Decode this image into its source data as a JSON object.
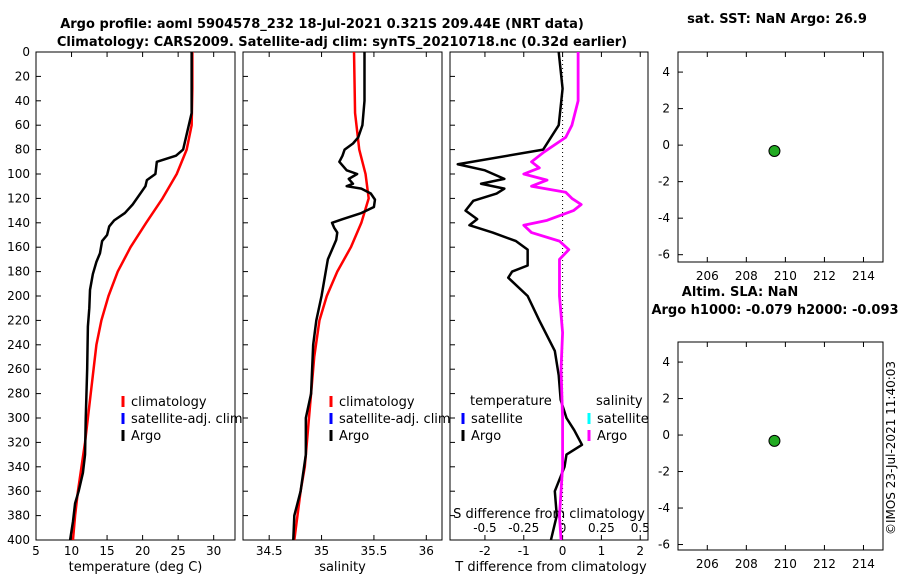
{
  "title_line1": "Argo profile: aoml 5904578_232 18-Jul-2021 0.321S 209.44E (NRT data)",
  "title_line2": "Climatology: CARS2009. Satellite-adj clim: synTS_20210718.nc (0.32d earlier)",
  "sst_title": "sat. SST: NaN Argo: 26.9",
  "sla_title1": "Altim. SLA: NaN",
  "sla_title2": "Argo h1000: -0.079 h2000: -0.093",
  "footer": "©IMOS 23-Jul-2021 11:40:03",
  "colors": {
    "climatology": "#ff0000",
    "satellite": "#0000ff",
    "argo": "#000000",
    "sal_argo": "#ff00ff",
    "sal_sat": "#00ffff",
    "marker": "#22aa22"
  },
  "chart_data": [
    {
      "id": "temp",
      "type": "line",
      "xlabel": "temperature (deg C)",
      "xlim": [
        5,
        33
      ],
      "xticks": [
        5,
        10,
        15,
        20,
        25,
        30
      ],
      "ylim": [
        0,
        400
      ],
      "yticks": [
        0,
        20,
        40,
        60,
        80,
        100,
        120,
        140,
        160,
        180,
        200,
        220,
        240,
        260,
        280,
        300,
        320,
        340,
        360,
        380,
        400
      ],
      "legend": [
        "climatology",
        "satellite-adj. clim",
        "Argo"
      ],
      "series": [
        {
          "name": "climatology",
          "color": "#ff0000",
          "points": [
            [
              27,
              0
            ],
            [
              27,
              30
            ],
            [
              26.9,
              60
            ],
            [
              26.2,
              80
            ],
            [
              24.8,
              100
            ],
            [
              22.8,
              120
            ],
            [
              20.5,
              140
            ],
            [
              18.3,
              160
            ],
            [
              16.5,
              180
            ],
            [
              15.2,
              200
            ],
            [
              14.2,
              220
            ],
            [
              13.5,
              240
            ],
            [
              13.1,
              260
            ],
            [
              12.7,
              280
            ],
            [
              12.3,
              300
            ],
            [
              11.9,
              320
            ],
            [
              11.4,
              340
            ],
            [
              10.9,
              360
            ],
            [
              10.5,
              380
            ],
            [
              10.2,
              400
            ]
          ]
        },
        {
          "name": "Argo",
          "color": "#000000",
          "points": [
            [
              26.9,
              0
            ],
            [
              26.9,
              50
            ],
            [
              26.3,
              65
            ],
            [
              25.7,
              80
            ],
            [
              24.7,
              85
            ],
            [
              22,
              90
            ],
            [
              21.8,
              100
            ],
            [
              20.6,
              105
            ],
            [
              20.4,
              110
            ],
            [
              19.8,
              115
            ],
            [
              18.6,
              125
            ],
            [
              17.5,
              132
            ],
            [
              16,
              138
            ],
            [
              15.3,
              143
            ],
            [
              15,
              150
            ],
            [
              14.3,
              155
            ],
            [
              14,
              165
            ],
            [
              13.5,
              172
            ],
            [
              13,
              182
            ],
            [
              12.6,
              195
            ],
            [
              12.5,
              210
            ],
            [
              12.3,
              225
            ],
            [
              12.2,
              260
            ],
            [
              12.1,
              280
            ],
            [
              12,
              300
            ],
            [
              11.9,
              330
            ],
            [
              11.6,
              345
            ],
            [
              11,
              360
            ],
            [
              10.5,
              370
            ],
            [
              10.2,
              385
            ],
            [
              9.8,
              400
            ]
          ]
        }
      ]
    },
    {
      "id": "sal",
      "type": "line",
      "xlabel": "salinity",
      "xlim": [
        34.25,
        36.15
      ],
      "xticks": [
        34.5,
        35,
        35.5,
        36
      ],
      "ylim": [
        0,
        400
      ],
      "legend": [
        "climatology",
        "satellite-adj. clim",
        "Argo"
      ],
      "series": [
        {
          "name": "climatology",
          "color": "#ff0000",
          "points": [
            [
              35.31,
              0
            ],
            [
              35.32,
              50
            ],
            [
              35.36,
              80
            ],
            [
              35.42,
              100
            ],
            [
              35.45,
              120
            ],
            [
              35.38,
              140
            ],
            [
              35.28,
              160
            ],
            [
              35.15,
              180
            ],
            [
              35.05,
              200
            ],
            [
              34.98,
              220
            ],
            [
              34.93,
              250
            ],
            [
              34.9,
              280
            ],
            [
              34.87,
              310
            ],
            [
              34.84,
              340
            ],
            [
              34.8,
              360
            ],
            [
              34.77,
              380
            ],
            [
              34.74,
              400
            ]
          ]
        },
        {
          "name": "Argo",
          "color": "#000000",
          "points": [
            [
              35.41,
              0
            ],
            [
              35.41,
              40
            ],
            [
              35.39,
              60
            ],
            [
              35.35,
              70
            ],
            [
              35.3,
              75
            ],
            [
              35.22,
              80
            ],
            [
              35.2,
              85
            ],
            [
              35.17,
              90
            ],
            [
              35.24,
              97
            ],
            [
              35.34,
              100
            ],
            [
              35.26,
              104
            ],
            [
              35.3,
              108
            ],
            [
              35.24,
              110
            ],
            [
              35.38,
              112
            ],
            [
              35.47,
              116
            ],
            [
              35.51,
              121
            ],
            [
              35.5,
              127
            ],
            [
              35.38,
              132
            ],
            [
              35.2,
              137
            ],
            [
              35.1,
              140
            ],
            [
              35.12,
              144
            ],
            [
              35.15,
              148
            ],
            [
              35.14,
              154
            ],
            [
              35.11,
              160
            ],
            [
              35.06,
              170
            ],
            [
              35.04,
              180
            ],
            [
              35,
              200
            ],
            [
              34.95,
              220
            ],
            [
              34.92,
              240
            ],
            [
              34.9,
              280
            ],
            [
              34.85,
              300
            ],
            [
              34.85,
              330
            ],
            [
              34.8,
              360
            ],
            [
              34.77,
              370
            ],
            [
              34.74,
              380
            ],
            [
              34.73,
              400
            ]
          ]
        }
      ]
    },
    {
      "id": "diff",
      "type": "line",
      "xlabel": "T difference from climatology",
      "xlim": [
        -2.9,
        2.2
      ],
      "xticks": [
        -2,
        -1,
        0,
        1,
        2
      ],
      "top_axis_label": "S difference from climatology",
      "top_ticks": [
        -0.5,
        -0.25,
        0,
        0.25,
        0.5
      ],
      "ylim": [
        0,
        400
      ],
      "legend_temp": [
        "temperature",
        "satellite",
        "Argo"
      ],
      "legend_sal": [
        "salinity",
        "satellite",
        "Argo"
      ],
      "series": [
        {
          "name": "temperature Argo",
          "axis": "T",
          "color": "#000000",
          "points": [
            [
              -0.1,
              0
            ],
            [
              0,
              30
            ],
            [
              -0.1,
              60
            ],
            [
              -0.5,
              80
            ],
            [
              -2.7,
              92
            ],
            [
              -2,
              97
            ],
            [
              -1.5,
              104
            ],
            [
              -2.1,
              108
            ],
            [
              -1.5,
              112
            ],
            [
              -1.7,
              116
            ],
            [
              -2.3,
              122
            ],
            [
              -2.5,
              130
            ],
            [
              -2.2,
              137
            ],
            [
              -2.4,
              142
            ],
            [
              -1.8,
              148
            ],
            [
              -1.2,
              155
            ],
            [
              -0.9,
              162
            ],
            [
              -0.9,
              175
            ],
            [
              -1.3,
              180
            ],
            [
              -1.4,
              185
            ],
            [
              -0.9,
              200
            ],
            [
              -0.6,
              220
            ],
            [
              -0.2,
              245
            ],
            [
              -0.1,
              265
            ],
            [
              -0.05,
              285
            ],
            [
              0.1,
              300
            ],
            [
              0.3,
              310
            ],
            [
              0.5,
              322
            ],
            [
              0.1,
              330
            ],
            [
              0.05,
              340
            ],
            [
              -0.2,
              360
            ],
            [
              -0.15,
              380
            ],
            [
              -0.3,
              400
            ]
          ]
        },
        {
          "name": "salinity Argo",
          "axis": "S",
          "color": "#ff00ff",
          "points": [
            [
              0.1,
              0
            ],
            [
              0.1,
              40
            ],
            [
              0.06,
              60
            ],
            [
              0.02,
              70
            ],
            [
              -0.12,
              82
            ],
            [
              -0.2,
              90
            ],
            [
              -0.15,
              95
            ],
            [
              -0.25,
              100
            ],
            [
              -0.1,
              105
            ],
            [
              -0.2,
              110
            ],
            [
              0.02,
              115
            ],
            [
              0.06,
              120
            ],
            [
              0.12,
              125
            ],
            [
              0.07,
              130
            ],
            [
              -0.1,
              138
            ],
            [
              -0.25,
              142
            ],
            [
              -0.2,
              148
            ],
            [
              -0.02,
              155
            ],
            [
              0.04,
              162
            ],
            [
              -0.02,
              170
            ],
            [
              -0.02,
              180
            ],
            [
              -0.02,
              200
            ],
            [
              0,
              230
            ],
            [
              -0.01,
              260
            ],
            [
              0,
              300
            ],
            [
              0,
              340
            ],
            [
              -0.01,
              360
            ],
            [
              -0.02,
              380
            ],
            [
              -0.01,
              400
            ]
          ]
        }
      ]
    },
    {
      "id": "sst",
      "type": "scatter",
      "xlim": [
        204.5,
        215
      ],
      "xticks": [
        206,
        208,
        210,
        212,
        214
      ],
      "ylim": [
        -6.4,
        5.1
      ],
      "yticks": [
        4,
        2,
        0,
        -2,
        -4,
        -6
      ],
      "points": [
        [
          209.44,
          -0.32
        ]
      ]
    },
    {
      "id": "sla",
      "type": "scatter",
      "xlim": [
        204.5,
        215
      ],
      "xticks": [
        206,
        208,
        210,
        212,
        214
      ],
      "ylim": [
        -6.3,
        5.1
      ],
      "yticks": [
        4,
        2,
        0,
        -2,
        -4,
        -6
      ],
      "points": [
        [
          209.44,
          -0.32
        ]
      ]
    }
  ]
}
